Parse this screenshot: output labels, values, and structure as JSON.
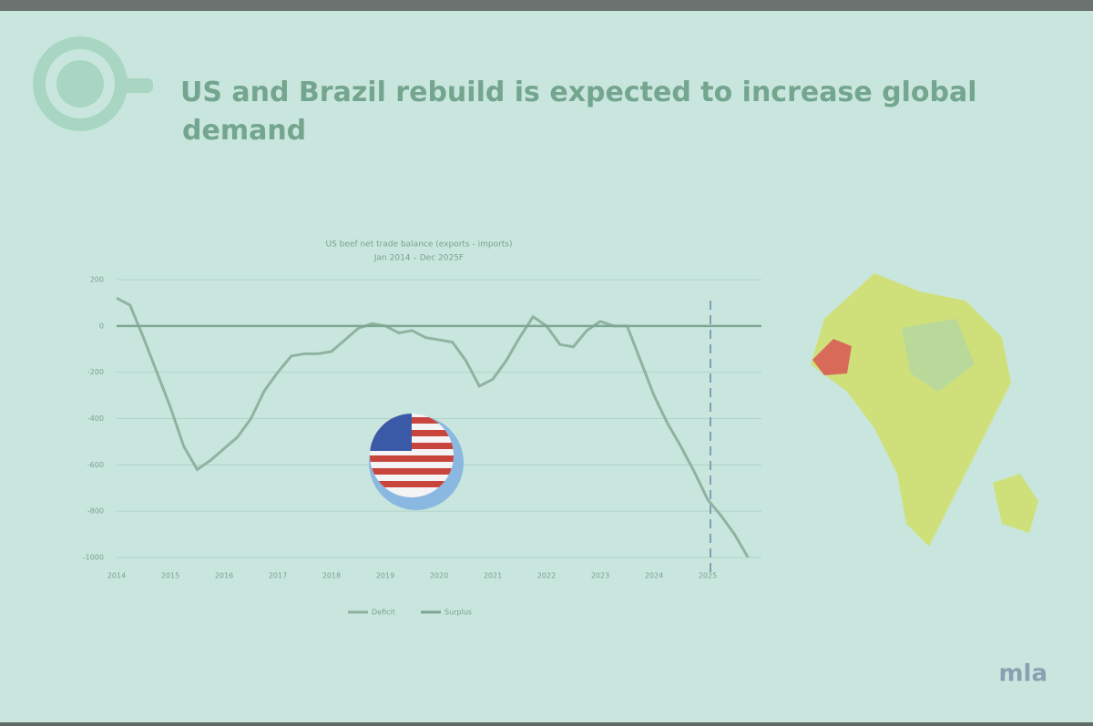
{
  "slide": {
    "title": "US and Brazil rebuild is expected to increase global demand",
    "logo": "mla"
  },
  "chart_data": {
    "type": "line",
    "title": "US beef net trade balance (exports - imports)",
    "subtitle": "Jan 2014 – Dec 2025F",
    "xlim": [
      2014,
      2026
    ],
    "xticks": [
      2014,
      2015,
      2016,
      2017,
      2018,
      2019,
      2020,
      2021,
      2022,
      2023,
      2024,
      2025
    ],
    "ylim": [
      -1000,
      200
    ],
    "yticks": [
      200,
      0,
      -200,
      -400,
      -600,
      -800,
      -1000
    ],
    "grid": true,
    "series": [
      {
        "name": "Deficit",
        "color": "#8fb3a0",
        "x": [
          2014,
          2014.25,
          2014.5,
          2014.75,
          2015,
          2015.25,
          2015.5,
          2015.75,
          2016,
          2016.25,
          2016.5,
          2016.75,
          2017,
          2017.25,
          2017.5,
          2017.75,
          2018,
          2018.25,
          2018.5,
          2018.75,
          2019,
          2019.25,
          2019.5,
          2019.75,
          2020,
          2020.25,
          2020.5,
          2020.75,
          2021,
          2021.25,
          2021.5,
          2021.75,
          2022,
          2022.25,
          2022.5,
          2022.75,
          2023,
          2023.25,
          2023.5,
          2023.75,
          2024,
          2024.25,
          2024.5,
          2024.75,
          2025,
          2025.25,
          2025.5,
          2025.75
        ],
        "values": [
          120,
          90,
          -50,
          -200,
          -350,
          -520,
          -620,
          -580,
          -530,
          -480,
          -400,
          -280,
          -200,
          -130,
          -120,
          -120,
          -110,
          -60,
          -10,
          10,
          0,
          -30,
          -20,
          -50,
          -60,
          -70,
          -150,
          -260,
          -230,
          -150,
          -50,
          40,
          0,
          -80,
          -90,
          -20,
          20,
          0,
          0,
          -150,
          -300,
          -420,
          -520,
          -630,
          -750,
          -820,
          -900,
          -1000
        ]
      },
      {
        "name": "Surplus",
        "color": "#7ea592",
        "x": [
          2014,
          2026
        ],
        "values": [
          0,
          0
        ]
      }
    ]
  }
}
